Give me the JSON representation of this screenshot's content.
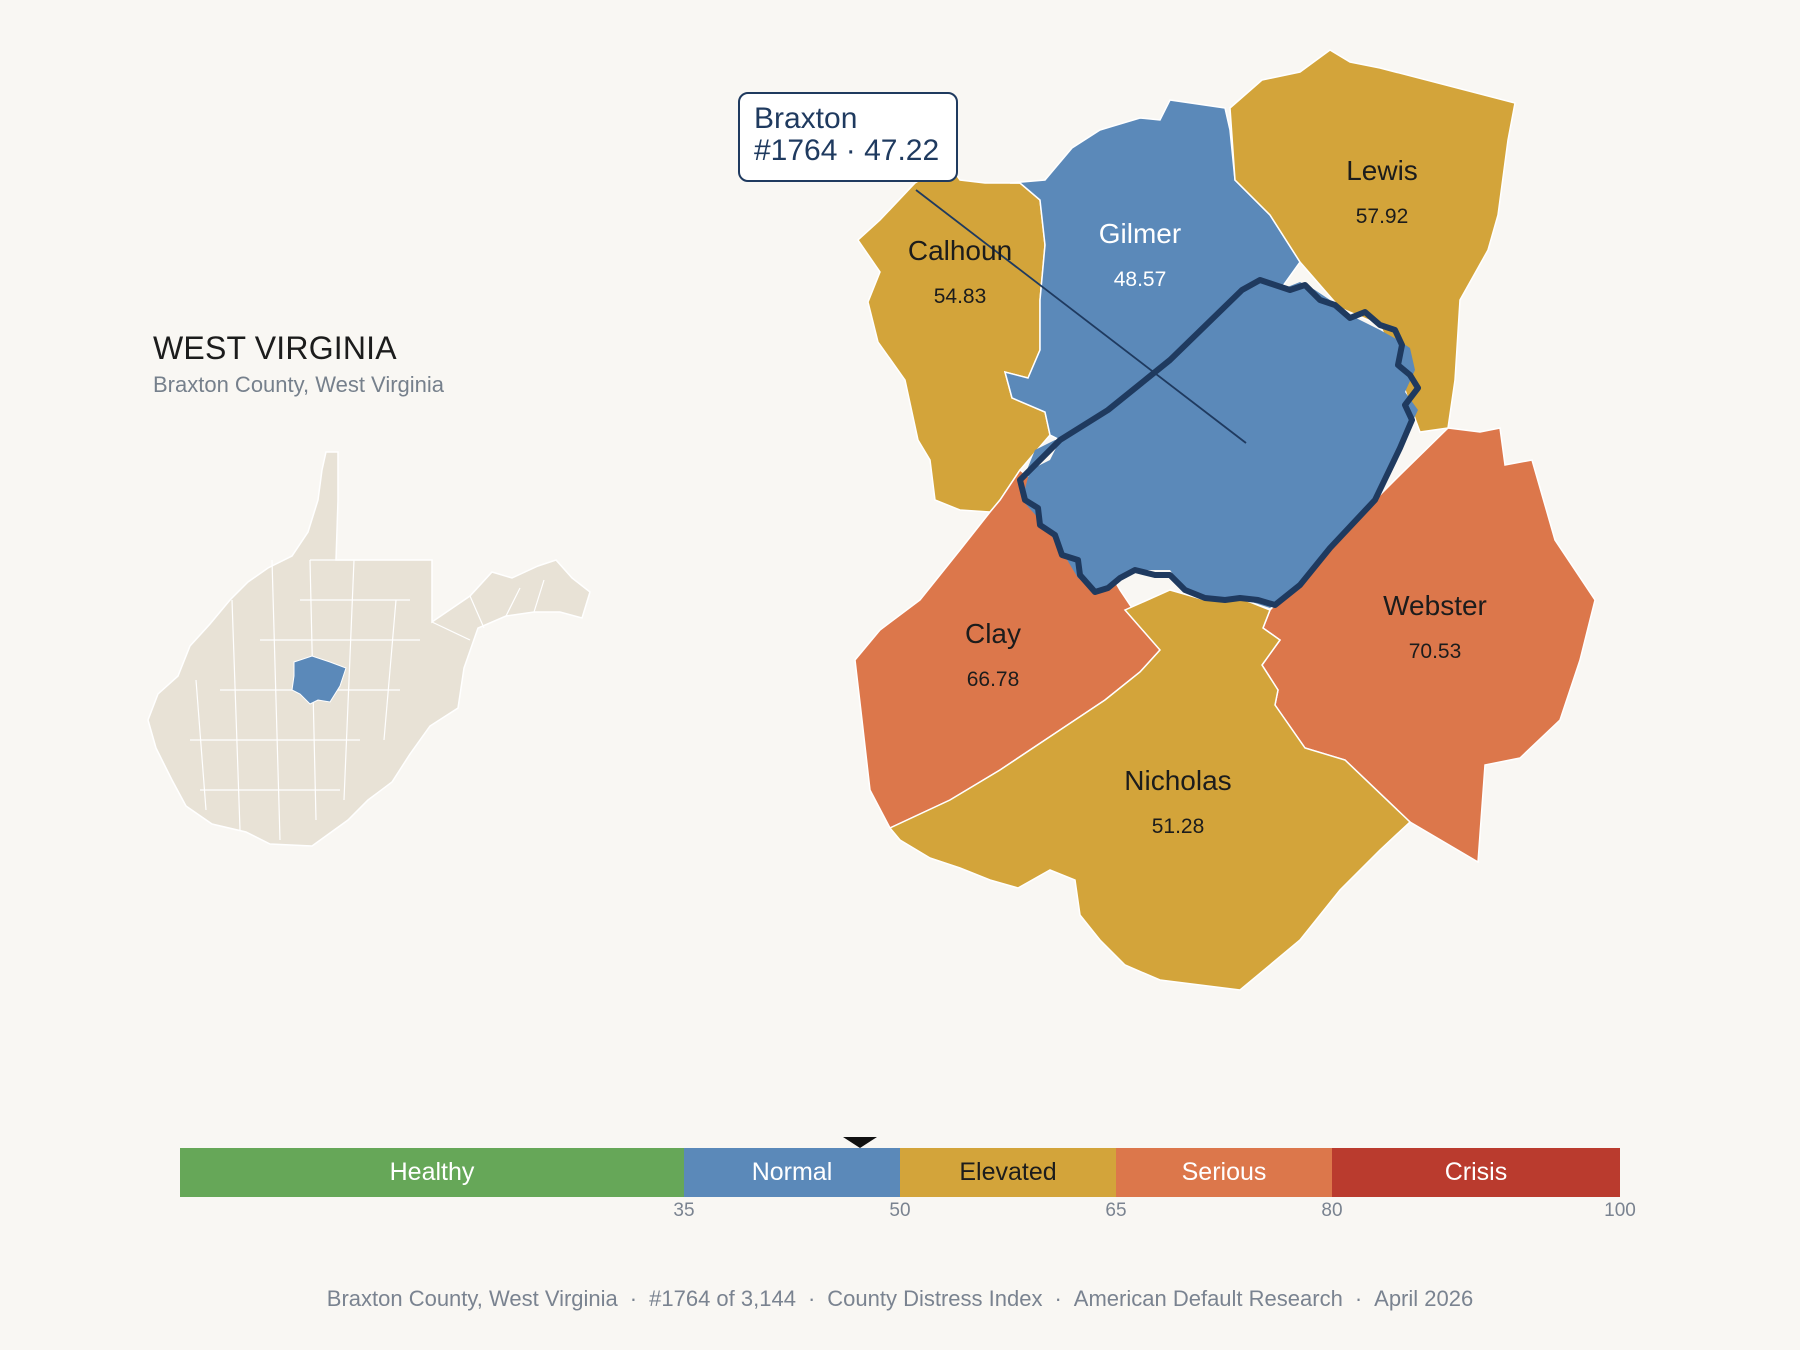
{
  "header": {
    "title": "WEST VIRGINIA",
    "subtitle": "Braxton County, West Virginia"
  },
  "callout": {
    "name": "Braxton",
    "detail": "#1764 · 47.22"
  },
  "counties": [
    {
      "name": "Calhoun",
      "value": "54.83",
      "category": "Elevated"
    },
    {
      "name": "Gilmer",
      "value": "48.57",
      "category": "Normal"
    },
    {
      "name": "Lewis",
      "value": "57.92",
      "category": "Elevated"
    },
    {
      "name": "Clay",
      "value": "66.78",
      "category": "Serious"
    },
    {
      "name": "Webster",
      "value": "70.53",
      "category": "Serious"
    },
    {
      "name": "Nicholas",
      "value": "51.28",
      "category": "Elevated"
    },
    {
      "name": "Braxton",
      "value": "47.22",
      "category": "Normal",
      "selected": true
    }
  ],
  "legend": {
    "segments": [
      {
        "label": "Healthy",
        "min": 0,
        "max": 35,
        "color": "#66a758"
      },
      {
        "label": "Normal",
        "min": 35,
        "max": 50,
        "color": "#5b89b9"
      },
      {
        "label": "Elevated",
        "min": 50,
        "max": 65,
        "color": "#d3a43a"
      },
      {
        "label": "Serious",
        "min": 65,
        "max": 80,
        "color": "#dc774b"
      },
      {
        "label": "Crisis",
        "min": 80,
        "max": 100,
        "color": "#ba3b2e"
      }
    ],
    "ticks": [
      "35",
      "50",
      "65",
      "80",
      "100"
    ],
    "marker_value": 47.22
  },
  "footer": {
    "county": "Braxton County, West Virginia",
    "rank": "#1764 of 3,144",
    "index": "County Distress Index",
    "source": "American Default Research",
    "date": "April 2026"
  },
  "colors": {
    "normal": "#5b89b9",
    "elevated": "#d3a43a",
    "serious": "#dc774b",
    "highlight_outline": "#1f3a5f",
    "state_fill": "#e8e2d6"
  }
}
